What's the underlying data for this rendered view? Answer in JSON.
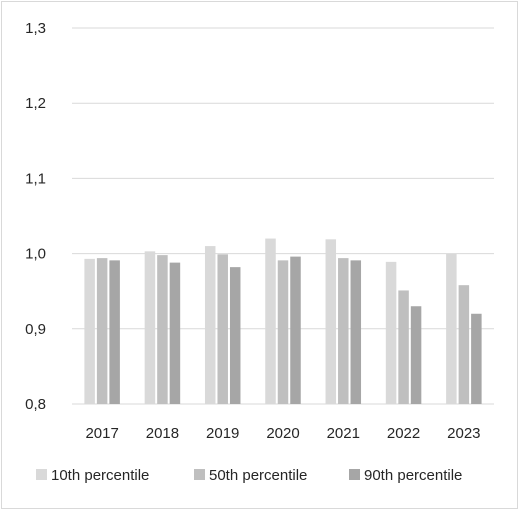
{
  "chart_data": {
    "type": "bar",
    "categories": [
      "2017",
      "2018",
      "2019",
      "2020",
      "2021",
      "2022",
      "2023"
    ],
    "series": [
      {
        "name": "10th percentile",
        "color": "#d9d9d9",
        "values": [
          0.993,
          1.003,
          1.01,
          1.02,
          1.019,
          0.989,
          1.0
        ]
      },
      {
        "name": "50th percentile",
        "color": "#bfbfbf",
        "values": [
          0.994,
          0.998,
          0.999,
          0.991,
          0.994,
          0.951,
          0.958
        ]
      },
      {
        "name": "90th percentile",
        "color": "#a6a6a6",
        "values": [
          0.991,
          0.988,
          0.982,
          0.996,
          0.991,
          0.93,
          0.92
        ]
      }
    ],
    "y_ticks": [
      "0,8",
      "0,9",
      "1,0",
      "1,1",
      "1,2",
      "1,3"
    ],
    "ylim": [
      0.8,
      1.3
    ],
    "grid": true,
    "legend_position": "bottom"
  }
}
